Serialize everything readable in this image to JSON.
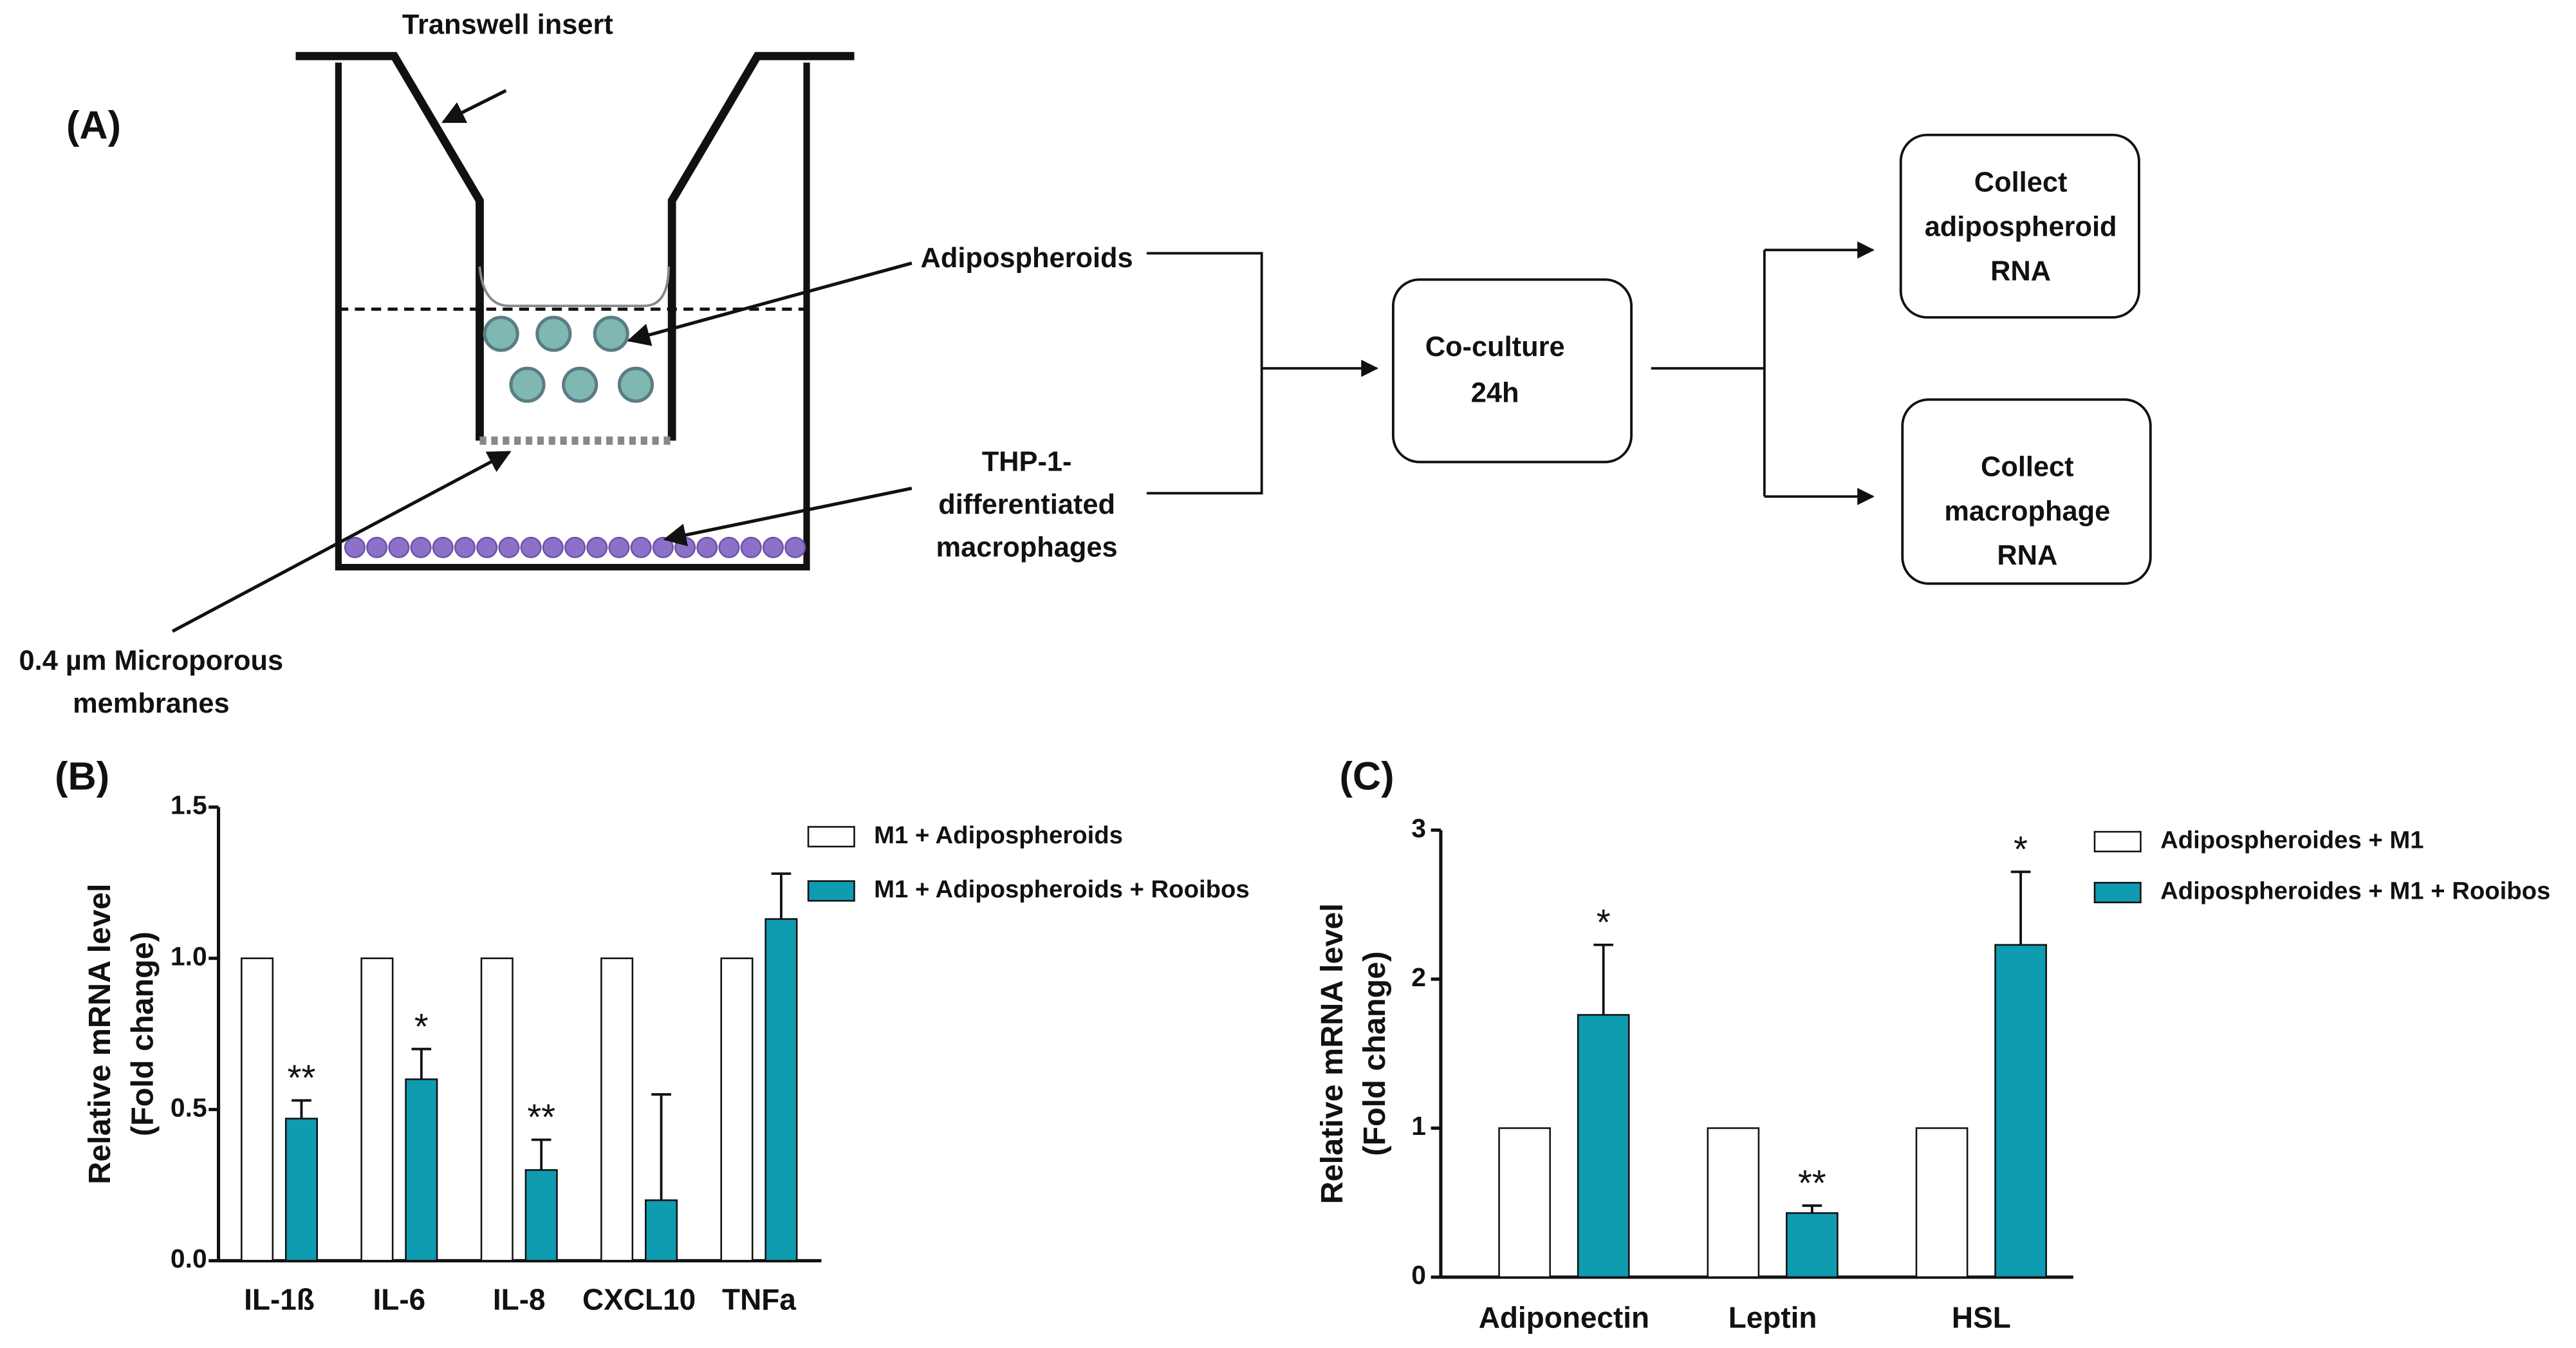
{
  "panel_labels": [
    "(A)",
    "(B)",
    "(C)"
  ],
  "diagram": {
    "transwell_insert": "Transwell insert",
    "adipospheroids": "Adipospheroids",
    "thp1": [
      "THP-1-",
      "differentiated",
      "macrophages"
    ],
    "membrane": [
      "0.4 µm Microporous",
      "membranes"
    ],
    "coculture": [
      "Co-culture",
      "24h"
    ],
    "collect_adipospheroid": [
      "Collect",
      "adipospheroid",
      "RNA"
    ],
    "collect_macrophage": [
      "Collect",
      "macrophage",
      "RNA"
    ]
  },
  "chart_data": [
    {
      "type": "bar",
      "y_label": [
        "Relative mRNA level",
        "(Fold change)"
      ],
      "categories": [
        "IL-1ß",
        "IL-6",
        "IL-8",
        "CXCL10",
        "TNFa"
      ],
      "series": [
        {
          "name": "M1 + Adipospheroids",
          "color": "#ffffff",
          "values": [
            1,
            1,
            1,
            1,
            1
          ]
        },
        {
          "name": "M1 + Adipospheroids + Rooibos",
          "color": "#0f9bb0",
          "values": [
            0.47,
            0.6,
            0.3,
            0.2,
            1.13
          ],
          "errors": [
            0.06,
            0.1,
            0.1,
            0.35,
            0.15
          ],
          "annotations": [
            "**",
            "*",
            "**",
            null,
            null
          ]
        }
      ],
      "ylim": [
        0,
        1.5
      ],
      "yticks": [
        {
          "value": 0,
          "label": "0.0"
        },
        0.5,
        {
          "value": 1,
          "label": "1.0"
        },
        1.5
      ]
    },
    {
      "type": "bar",
      "y_label": [
        "Relative mRNA level",
        "(Fold change)"
      ],
      "categories": [
        "Adiponectin",
        "Leptin",
        "HSL"
      ],
      "series": [
        {
          "name": "Adipospheroides + M1",
          "color": "#ffffff",
          "values": [
            1,
            1,
            1
          ]
        },
        {
          "name": "Adipospheroides + M1 + Rooibos",
          "color": "#0f9bb0",
          "values": [
            1.76,
            0.43,
            2.23
          ],
          "errors": [
            0.47,
            0.05,
            0.49
          ],
          "annotations": [
            "*",
            "**",
            "*"
          ]
        }
      ],
      "ylim": [
        0,
        3
      ],
      "yticks": [
        0,
        1,
        2,
        3
      ]
    }
  ]
}
